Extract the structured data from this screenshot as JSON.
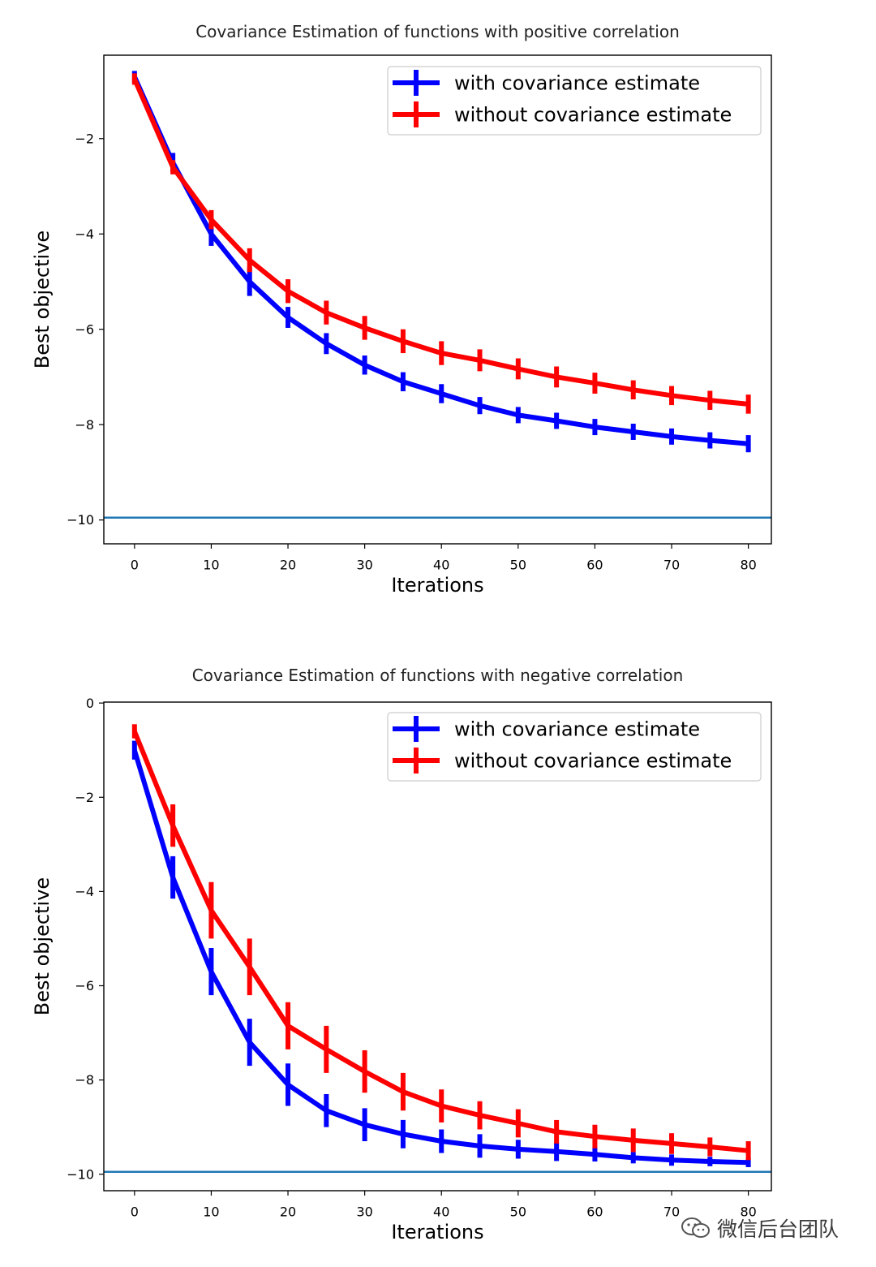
{
  "chart_data": [
    {
      "type": "line",
      "title": "Covariance Estimation of functions with positive correlation",
      "xlabel": "Iterations",
      "ylabel": "Best objective",
      "xlim": [
        -4,
        83
      ],
      "ylim": [
        -10.5,
        -0.25
      ],
      "xticks": [
        0,
        10,
        20,
        30,
        40,
        50,
        60,
        70,
        80
      ],
      "yticks": [
        -2,
        -4,
        -6,
        -8,
        -10
      ],
      "grid": false,
      "legend_position": "top-right",
      "x": [
        0,
        5,
        10,
        15,
        20,
        25,
        30,
        35,
        40,
        45,
        50,
        55,
        60,
        65,
        70,
        75,
        80
      ],
      "series": [
        {
          "name": "with covariance estimate",
          "color": "#0000ff",
          "values": [
            -0.7,
            -2.5,
            -4.0,
            -5.0,
            -5.75,
            -6.3,
            -6.75,
            -7.1,
            -7.35,
            -7.6,
            -7.8,
            -7.92,
            -8.05,
            -8.15,
            -8.25,
            -8.33,
            -8.4
          ],
          "errors": [
            0.12,
            0.2,
            0.25,
            0.3,
            0.22,
            0.22,
            0.2,
            0.2,
            0.2,
            0.18,
            0.17,
            0.17,
            0.17,
            0.17,
            0.17,
            0.17,
            0.18
          ]
        },
        {
          "name": "without covariance estimate",
          "color": "#ff0000",
          "values": [
            -0.75,
            -2.6,
            -3.7,
            -4.55,
            -5.2,
            -5.65,
            -5.97,
            -6.25,
            -6.5,
            -6.65,
            -6.83,
            -7.0,
            -7.13,
            -7.27,
            -7.39,
            -7.49,
            -7.57
          ],
          "errors": [
            0.12,
            0.15,
            0.2,
            0.25,
            0.25,
            0.25,
            0.25,
            0.25,
            0.25,
            0.23,
            0.22,
            0.22,
            0.22,
            0.2,
            0.2,
            0.2,
            0.2
          ]
        }
      ],
      "reference_line": {
        "y": -9.95,
        "color": "#1f77b4"
      }
    },
    {
      "type": "line",
      "title": "Covariance Estimation of functions with negative correlation",
      "xlabel": "Iterations",
      "ylabel": "Best objective",
      "xlim": [
        -4,
        83
      ],
      "ylim": [
        -10.35,
        0.02
      ],
      "xticks": [
        0,
        10,
        20,
        30,
        40,
        50,
        60,
        70,
        80
      ],
      "yticks": [
        0,
        -2,
        -4,
        -6,
        -8,
        -10
      ],
      "grid": false,
      "legend_position": "top-right",
      "x": [
        0,
        5,
        10,
        15,
        20,
        25,
        30,
        35,
        40,
        45,
        50,
        55,
        60,
        65,
        70,
        75,
        80
      ],
      "series": [
        {
          "name": "with covariance estimate",
          "color": "#0000ff",
          "values": [
            -1.0,
            -3.7,
            -5.7,
            -7.2,
            -8.1,
            -8.65,
            -8.95,
            -9.15,
            -9.3,
            -9.4,
            -9.47,
            -9.52,
            -9.58,
            -9.65,
            -9.7,
            -9.73,
            -9.75
          ],
          "errors": [
            0.2,
            0.45,
            0.5,
            0.5,
            0.45,
            0.35,
            0.35,
            0.3,
            0.25,
            0.25,
            0.2,
            0.2,
            0.15,
            0.12,
            0.12,
            0.1,
            0.1
          ]
        },
        {
          "name": "without covariance estimate",
          "color": "#ff0000",
          "values": [
            -0.6,
            -2.6,
            -4.4,
            -5.6,
            -6.85,
            -7.35,
            -7.82,
            -8.25,
            -8.55,
            -8.75,
            -8.92,
            -9.1,
            -9.2,
            -9.28,
            -9.35,
            -9.42,
            -9.5
          ],
          "errors": [
            0.15,
            0.45,
            0.6,
            0.6,
            0.5,
            0.5,
            0.45,
            0.4,
            0.35,
            0.3,
            0.3,
            0.25,
            0.25,
            0.25,
            0.22,
            0.2,
            0.2
          ]
        }
      ],
      "reference_line": {
        "y": -9.95,
        "color": "#1f77b4"
      }
    }
  ],
  "watermark": {
    "text": "微信后台团队",
    "icon": "wechat-icon"
  }
}
